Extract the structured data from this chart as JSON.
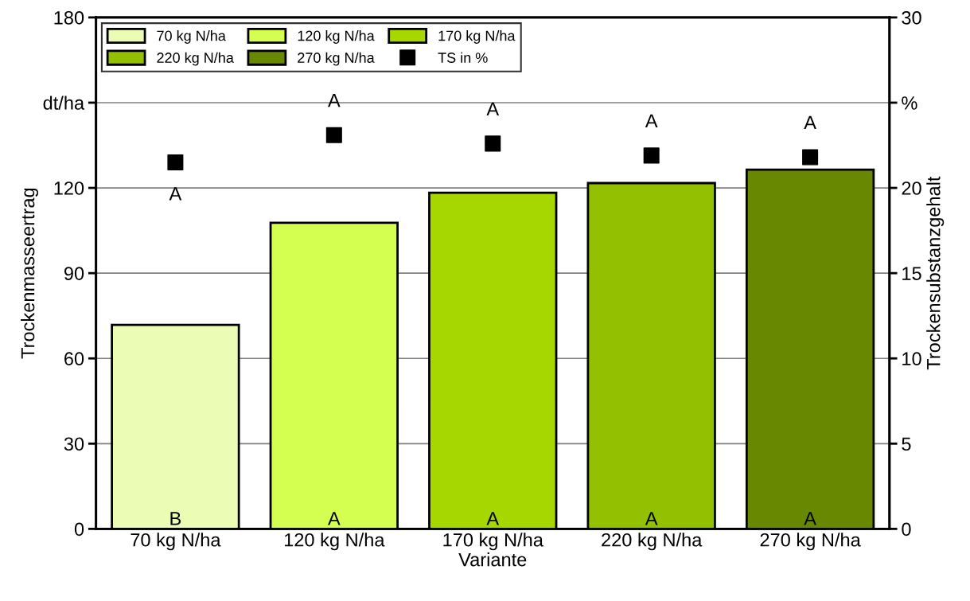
{
  "chart_data": {
    "type": "bar",
    "xlabel": "Variante",
    "ylabel": "Trockenmasseertrag",
    "y2label": "Trockensubstanzgehalt",
    "categories": [
      "70 kg N/ha",
      "120 kg N/ha",
      "170 kg N/ha",
      "220 kg N/ha",
      "270 kg N/ha"
    ],
    "series": [
      {
        "name": "70 kg N/ha",
        "color": "#ebfcb5",
        "values": [
          71.8,
          null,
          null,
          null,
          null
        ]
      },
      {
        "name": "120 kg N/ha",
        "color": "#d4ff50",
        "values": [
          null,
          107.7,
          null,
          null,
          null
        ]
      },
      {
        "name": "170 kg N/ha",
        "color": "#a6d800",
        "values": [
          null,
          null,
          118.3,
          null,
          null
        ]
      },
      {
        "name": "220 kg N/ha",
        "color": "#93c000",
        "values": [
          null,
          null,
          null,
          121.7,
          null
        ]
      },
      {
        "name": "270 kg N/ha",
        "color": "#678800",
        "values": [
          null,
          null,
          null,
          null,
          126.4
        ]
      },
      {
        "name": "TS in %",
        "type": "scatter",
        "axis": "y2",
        "color": "#000000",
        "values": [
          21.5,
          23.1,
          22.6,
          21.9,
          21.8
        ]
      }
    ],
    "stacked": true,
    "ylim": [
      0,
      180
    ],
    "yticks": [
      0,
      30,
      60,
      90,
      120,
      {
        "value": 150,
        "label": "dt/ha"
      },
      180
    ],
    "y2lim": [
      0,
      30
    ],
    "y2ticks": [
      0,
      5,
      10,
      15,
      20,
      {
        "value": 25,
        "label": "%"
      },
      30
    ],
    "grid": "y",
    "legend": "top left",
    "marker": "square",
    "annotations": [
      {
        "text": "B",
        "x": "70 kg N/ha",
        "y": 0
      },
      {
        "text": "A",
        "x": "120 kg N/ha",
        "y": 0
      },
      {
        "text": "A",
        "x": "170 kg N/ha",
        "y": 0
      },
      {
        "text": "A",
        "x": "220 kg N/ha",
        "y": 0
      },
      {
        "text": "A",
        "x": "270 kg N/ha",
        "y": 0
      },
      "A",
      "A",
      "A",
      "A",
      "A"
    ]
  }
}
